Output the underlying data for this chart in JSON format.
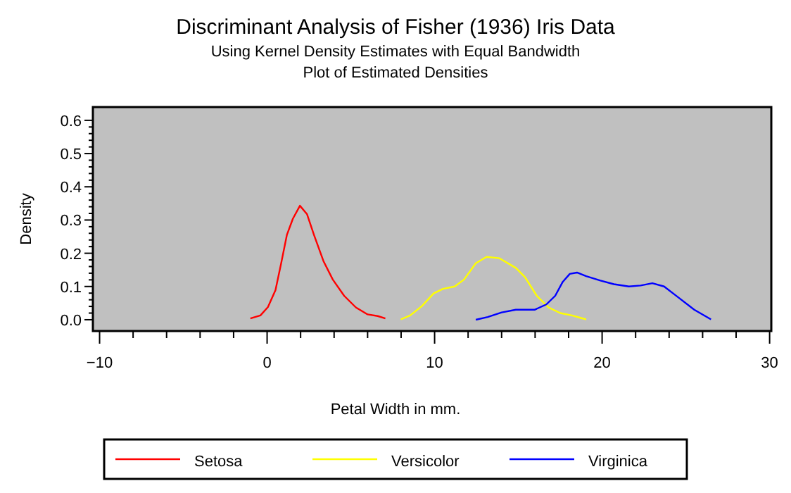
{
  "chart_data": {
    "type": "line",
    "title": "Discriminant Analysis of Fisher (1936) Iris Data",
    "subtitle": "Using Kernel Density Estimates with Equal Bandwidth\nPlot of Estimated Densities",
    "xlabel": "Petal Width in mm.",
    "ylabel": "Density",
    "xlim": [
      -10.4,
      30.1
    ],
    "xticks": [
      -10,
      0,
      10,
      20,
      30
    ],
    "ylim": [
      -0.034,
      0.64
    ],
    "yticks": [
      {
        "value": 0,
        "label": "0.0"
      },
      0.1,
      0.2,
      0.3,
      0.4,
      0.5,
      0.6
    ],
    "grid": false,
    "legend": "bottom",
    "marker": "none",
    "line_style": "solid",
    "series": [
      {
        "name": "Setosa",
        "color": "#ff0000",
        "x": [
          -1.0,
          -0.4,
          0.05,
          0.5,
          0.84,
          1.18,
          1.54,
          1.96,
          2.38,
          2.8,
          3.36,
          3.92,
          4.6,
          5.3,
          6.0,
          6.6,
          7.06
        ],
        "values": [
          0.004,
          0.013,
          0.038,
          0.089,
          0.17,
          0.255,
          0.304,
          0.343,
          0.318,
          0.255,
          0.177,
          0.121,
          0.072,
          0.037,
          0.016,
          0.011,
          0.004
        ]
      },
      {
        "name": "Versicolor",
        "color": "#ffff00",
        "x": [
          7.98,
          8.54,
          9.24,
          9.94,
          10.5,
          11.2,
          11.76,
          12.46,
          13.1,
          13.87,
          14.85,
          15.4,
          16.1,
          16.8,
          17.5,
          18.2,
          19.05
        ],
        "values": [
          0.001,
          0.013,
          0.041,
          0.079,
          0.093,
          0.1,
          0.121,
          0.17,
          0.189,
          0.185,
          0.156,
          0.128,
          0.072,
          0.037,
          0.02,
          0.013,
          0.001
        ]
      },
      {
        "name": "Virginica",
        "color": "#0000ff",
        "x": [
          12.46,
          13.17,
          14.0,
          14.85,
          15.97,
          16.67,
          17.2,
          17.65,
          18.07,
          18.5,
          19.05,
          19.9,
          20.7,
          21.6,
          22.3,
          23.0,
          23.7,
          24.5,
          25.5,
          26.5
        ],
        "values": [
          0.0,
          0.008,
          0.022,
          0.03,
          0.03,
          0.046,
          0.072,
          0.114,
          0.138,
          0.142,
          0.131,
          0.118,
          0.107,
          0.1,
          0.103,
          0.11,
          0.1,
          0.069,
          0.03,
          0.001
        ]
      }
    ]
  }
}
